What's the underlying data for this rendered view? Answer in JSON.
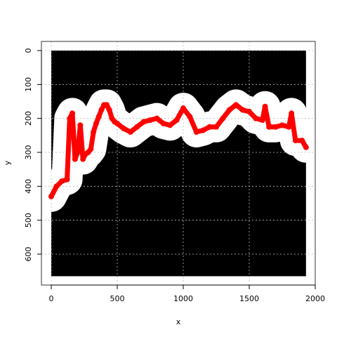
{
  "chart_data": {
    "type": "scatter",
    "title": "",
    "xlabel": "x",
    "ylabel": "y",
    "xlim": [
      0,
      1930
    ],
    "ylim": [
      0,
      665
    ],
    "y_reversed": true,
    "grid": true,
    "background_color": "#000000",
    "band_color": "#ffffff",
    "series_color": "#ff0000",
    "x_ticks": [
      0,
      500,
      1000,
      1500,
      2000
    ],
    "x_tick_labels": [
      "0",
      "500",
      "1000",
      "1500",
      "2000"
    ],
    "y_ticks": [
      0,
      100,
      200,
      300,
      400,
      500,
      600
    ],
    "y_tick_labels": [
      "0",
      "100",
      "200",
      "300",
      "400",
      "500",
      "600"
    ],
    "series": [
      {
        "x": [
          0,
          40,
          80,
          120,
          140,
          160,
          180,
          200,
          220,
          240,
          260,
          280,
          300,
          320,
          340,
          360,
          380,
          400,
          420,
          440,
          460,
          480,
          500,
          550,
          600,
          650,
          700,
          750,
          800,
          850,
          900,
          950,
          1000,
          1050,
          1100,
          1150,
          1200,
          1250,
          1300,
          1350,
          1400,
          1450,
          1500,
          1550,
          1600,
          1620,
          1650,
          1700,
          1750,
          1800,
          1820,
          1850,
          1900,
          1930
        ],
        "y": [
          430,
          400,
          385,
          380,
          200,
          185,
          320,
          300,
          220,
          320,
          305,
          300,
          290,
          240,
          215,
          195,
          175,
          160,
          160,
          175,
          200,
          210,
          215,
          230,
          240,
          225,
          210,
          205,
          200,
          215,
          220,
          205,
          170,
          195,
          240,
          235,
          225,
          225,
          200,
          175,
          160,
          175,
          180,
          200,
          205,
          165,
          225,
          225,
          220,
          225,
          185,
          265,
          265,
          285
        ]
      }
    ]
  }
}
